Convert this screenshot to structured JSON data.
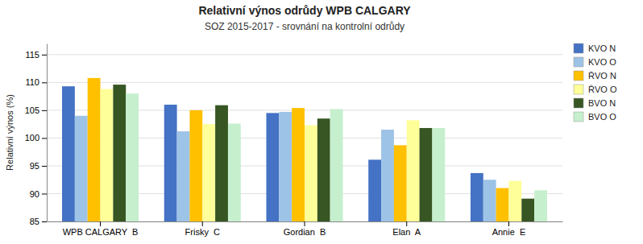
{
  "chart_data": {
    "type": "bar",
    "title": "Relativní výnos odrůdy WPB CALGARY",
    "subtitle": "SOZ 2015-2017 - srovnání na kontrolní odrůdy",
    "ylabel": "Relativní výnos (%)",
    "categories": [
      "WPB CALGARY  B",
      "Frisky  C",
      "Gordian  B",
      "Elan  A",
      "Annie  E"
    ],
    "series": [
      {
        "name": "KVO N",
        "color": "#4472C4",
        "values": [
          109.3,
          106.0,
          104.5,
          96.1,
          93.7
        ]
      },
      {
        "name": "KVO O",
        "color": "#9DC3E6",
        "values": [
          104.0,
          101.2,
          104.7,
          101.5,
          92.5
        ]
      },
      {
        "name": "ŘVO N",
        "color": "#FFC000",
        "values": [
          110.8,
          105.0,
          105.4,
          98.7,
          91.0
        ]
      },
      {
        "name": "ŘVO O",
        "color": "#FFFF99",
        "values": [
          108.8,
          102.5,
          102.3,
          103.2,
          92.3
        ]
      },
      {
        "name": "BVO N",
        "color": "#375623",
        "values": [
          109.6,
          105.9,
          103.5,
          101.8,
          89.1
        ]
      },
      {
        "name": "BVO O",
        "color": "#C6EFCE",
        "values": [
          108.0,
          102.6,
          105.2,
          101.8,
          90.6
        ]
      }
    ],
    "ylim": [
      85,
      117
    ],
    "yticks": [
      85,
      90,
      95,
      100,
      105,
      110,
      115
    ],
    "grid": true,
    "legend": "upper right"
  }
}
